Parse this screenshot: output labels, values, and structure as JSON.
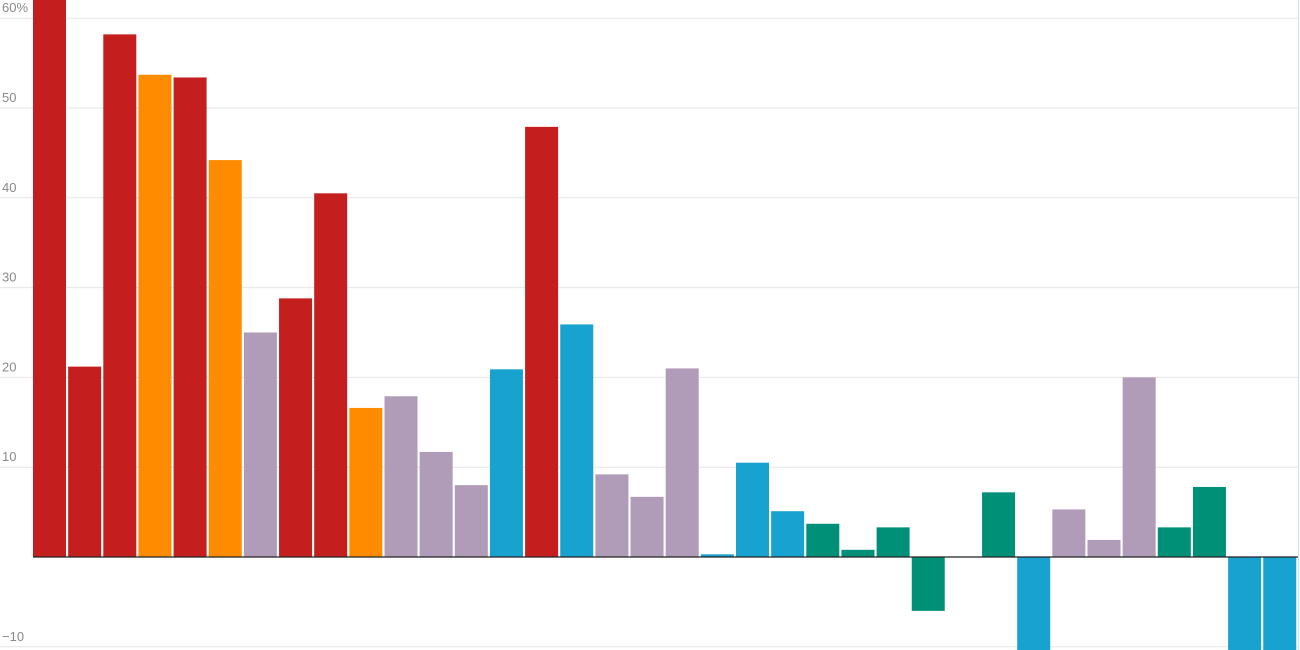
{
  "chart_data": {
    "type": "bar",
    "title": "",
    "xlabel": "",
    "ylabel": "",
    "ylim": [
      -10,
      60
    ],
    "y_ticks": [
      {
        "value": 60,
        "label": "60%"
      },
      {
        "value": 50,
        "label": "50"
      },
      {
        "value": 40,
        "label": "40"
      },
      {
        "value": 30,
        "label": "30"
      },
      {
        "value": 20,
        "label": "20"
      },
      {
        "value": 10,
        "label": "10"
      },
      {
        "value": -10,
        "label": "−10"
      }
    ],
    "grid": true,
    "legend": "none",
    "colors": {
      "red": "#c41e1e",
      "orange": "#ff8c00",
      "lavender": "#b09bb9",
      "blue": "#17a2d0",
      "green": "#009077"
    },
    "bars": [
      {
        "value": 63.0,
        "color": "red"
      },
      {
        "value": 21.2,
        "color": "red"
      },
      {
        "value": 58.2,
        "color": "red"
      },
      {
        "value": 53.7,
        "color": "orange"
      },
      {
        "value": 53.4,
        "color": "red"
      },
      {
        "value": 44.2,
        "color": "orange"
      },
      {
        "value": 25.0,
        "color": "lavender"
      },
      {
        "value": 28.8,
        "color": "red"
      },
      {
        "value": 40.5,
        "color": "red"
      },
      {
        "value": 16.6,
        "color": "orange"
      },
      {
        "value": 17.9,
        "color": "lavender"
      },
      {
        "value": 11.7,
        "color": "lavender"
      },
      {
        "value": 8.0,
        "color": "lavender"
      },
      {
        "value": 20.9,
        "color": "blue"
      },
      {
        "value": 47.9,
        "color": "red"
      },
      {
        "value": 25.9,
        "color": "blue"
      },
      {
        "value": 9.2,
        "color": "lavender"
      },
      {
        "value": 6.7,
        "color": "lavender"
      },
      {
        "value": 21.0,
        "color": "lavender"
      },
      {
        "value": 0.3,
        "color": "blue"
      },
      {
        "value": 10.5,
        "color": "blue"
      },
      {
        "value": 5.1,
        "color": "blue"
      },
      {
        "value": 3.7,
        "color": "green"
      },
      {
        "value": 0.8,
        "color": "green"
      },
      {
        "value": 3.3,
        "color": "green"
      },
      {
        "value": -6.0,
        "color": "green"
      },
      {
        "value": 0,
        "color": "green"
      },
      {
        "value": 7.2,
        "color": "green"
      },
      {
        "value": -10.5,
        "color": "blue"
      },
      {
        "value": 5.3,
        "color": "lavender"
      },
      {
        "value": 1.9,
        "color": "lavender"
      },
      {
        "value": 20.0,
        "color": "lavender"
      },
      {
        "value": 3.3,
        "color": "green"
      },
      {
        "value": 7.8,
        "color": "green"
      },
      {
        "value": -10.5,
        "color": "blue"
      },
      {
        "value": -10.5,
        "color": "blue"
      }
    ]
  }
}
